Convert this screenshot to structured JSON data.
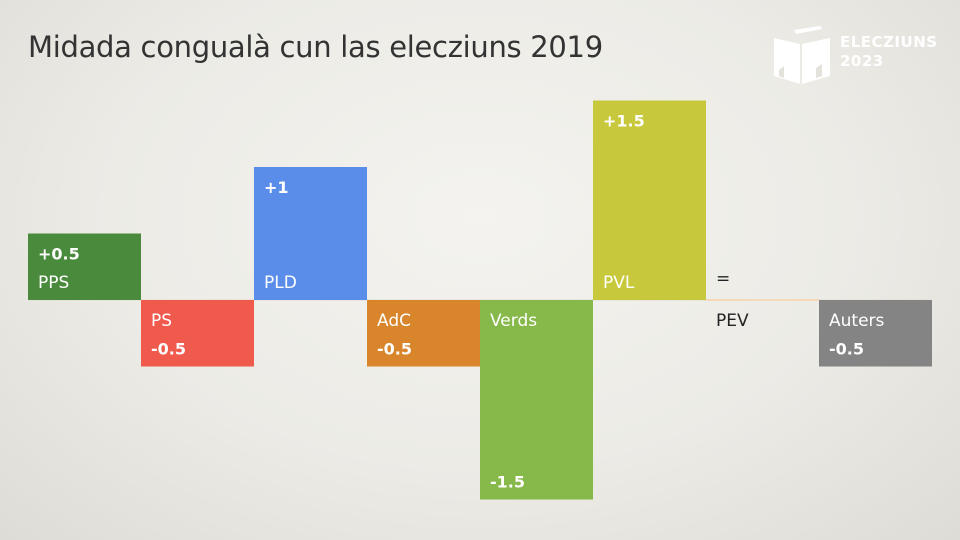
{
  "title": "Midada congualà cun las elecziuns 2019",
  "logo": {
    "line1": "ELECZIUNS",
    "line2": "2023",
    "icon": "ballot-book-icon"
  },
  "chart_data": {
    "type": "bar",
    "title": "Midada congualà cun las elecziuns 2019",
    "xlabel": "",
    "ylabel": "",
    "categories": [
      "PPS",
      "PS",
      "PLD",
      "AdC",
      "Verds",
      "PVL",
      "PEV",
      "Auters"
    ],
    "values": [
      0.5,
      -0.5,
      1,
      -0.5,
      -1.5,
      1.5,
      0,
      -0.5
    ],
    "value_labels": [
      "+0.5",
      "-0.5",
      "+1",
      "-0.5",
      "-1.5",
      "+1.5",
      "=",
      "-0.5"
    ],
    "colors": [
      "#4a8a3c",
      "#ef5a4d",
      "#5a8cea",
      "#d9852b",
      "#86b84a",
      "#c8c83c",
      "#f5d9b8",
      "#848484"
    ],
    "ylim": [
      -1.5,
      1.5
    ],
    "grid": false,
    "legend": "none"
  }
}
